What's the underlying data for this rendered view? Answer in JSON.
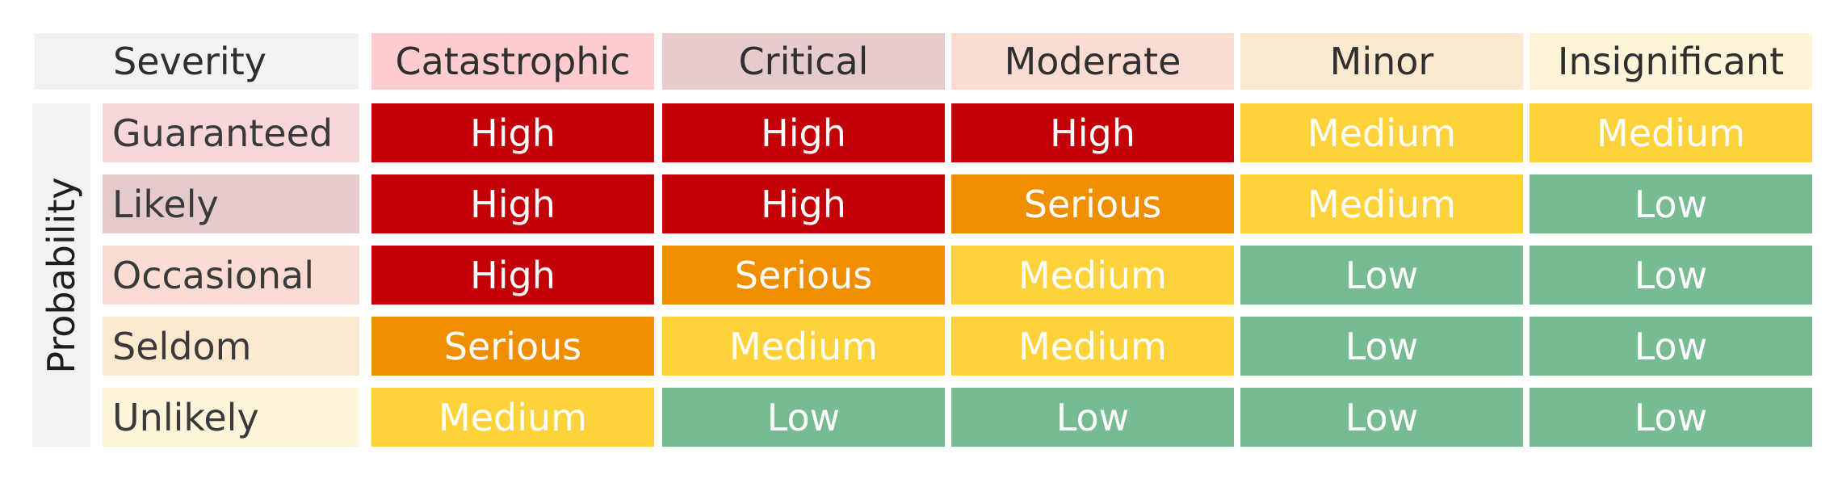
{
  "severity_label": "Severity",
  "probability_label": "Probability",
  "corner_color": "#f2f2f2",
  "prob_bar_color": "#f2f2f2",
  "severity_columns": [
    {
      "label": "Catastrophic",
      "color": "#ffcdd0"
    },
    {
      "label": "Critical",
      "color": "#e5cbcc"
    },
    {
      "label": "Moderate",
      "color": "#fbdcd2"
    },
    {
      "label": "Minor",
      "color": "#fde9d0"
    },
    {
      "label": "Insignificant",
      "color": "#fef4d9"
    }
  ],
  "probability_rows": [
    {
      "label": "Guaranteed",
      "color": "#f8d7d9",
      "cells": [
        "High",
        "High",
        "High",
        "Medium",
        "Medium"
      ]
    },
    {
      "label": "Likely",
      "color": "#e5cbcc",
      "cells": [
        "High",
        "High",
        "Serious",
        "Medium",
        "Low"
      ]
    },
    {
      "label": "Occasional",
      "color": "#fbdcd2",
      "cells": [
        "High",
        "Serious",
        "Medium",
        "Low",
        "Low"
      ]
    },
    {
      "label": "Seldom",
      "color": "#fde9d0",
      "cells": [
        "Serious",
        "Medium",
        "Medium",
        "Low",
        "Low"
      ]
    },
    {
      "label": "Unlikely",
      "color": "#fef4d9",
      "cells": [
        "Medium",
        "Low",
        "Low",
        "Low",
        "Low"
      ]
    }
  ],
  "level_colors": {
    "High": "#c30007",
    "Serious": "#ef8f00",
    "Medium": "#fdd23a",
    "Low": "#77bb92"
  }
}
